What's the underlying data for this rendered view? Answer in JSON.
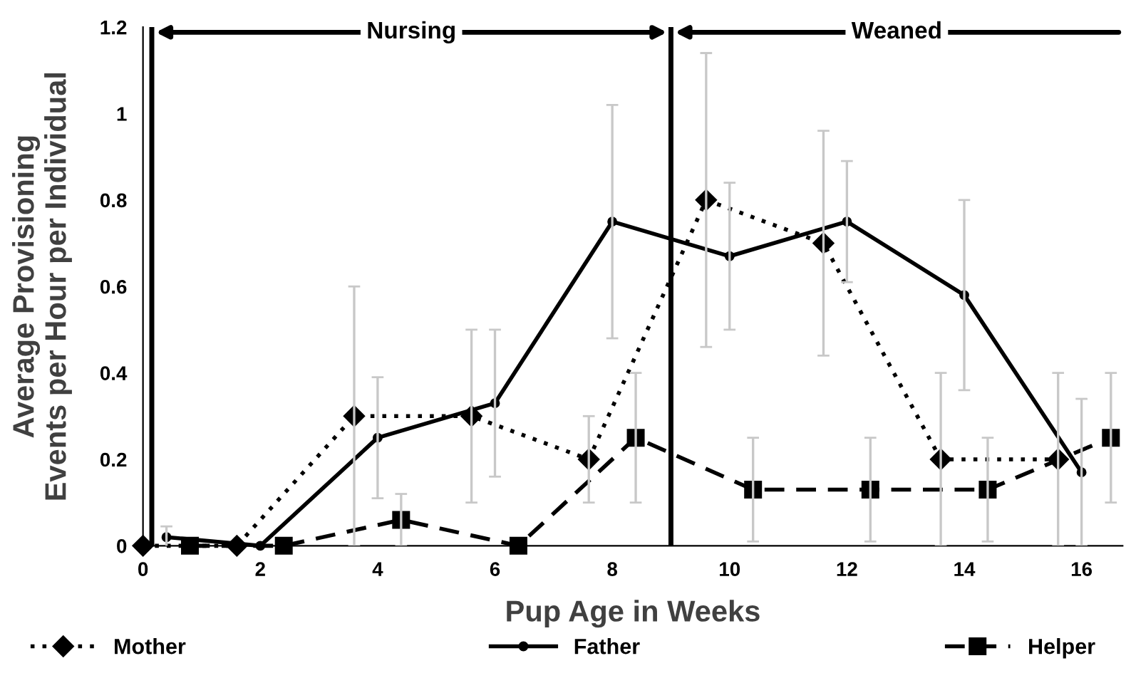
{
  "chart_data": {
    "type": "line",
    "xlabel": "Pup Age in Weeks",
    "ylabel": "Average Provisioning\nEvents per Hour per Individual",
    "xlim": [
      0,
      16.7
    ],
    "xticks": [
      0,
      2,
      4,
      6,
      8,
      10,
      12,
      14,
      16
    ],
    "ylim": [
      0,
      1.2
    ],
    "yticks": [
      0,
      0.2,
      0.4,
      0.6,
      0.8,
      1,
      1.2
    ],
    "grid": false,
    "legend": "bottom",
    "series": [
      {
        "name": "Mother",
        "color": "#000000",
        "marker": "diamond",
        "line_style": "dotted",
        "x": [
          0,
          1.6,
          3.6,
          5.6,
          7.6,
          9.6,
          11.6,
          13.6,
          15.6
        ],
        "values": [
          0,
          0,
          0.3,
          0.3,
          0.2,
          0.8,
          0.7,
          0.2,
          0.2
        ],
        "errors": [
          null,
          null,
          0.3,
          0.2,
          0.1,
          0.34,
          0.26,
          0.2,
          0.2
        ]
      },
      {
        "name": "Father",
        "color": "#000000",
        "marker": "circle",
        "line_style": "solid",
        "x": [
          0.4,
          2,
          4,
          6,
          8,
          10,
          12,
          14,
          16
        ],
        "values": [
          0.02,
          0,
          0.25,
          0.33,
          0.75,
          0.67,
          0.75,
          0.58,
          0.17
        ],
        "errors": [
          0.025,
          null,
          0.14,
          0.17,
          0.27,
          0.17,
          0.14,
          0.22,
          0.17
        ]
      },
      {
        "name": "Helper",
        "color": "#000000",
        "marker": "square",
        "line_style": "dashed",
        "x": [
          0.8,
          2.4,
          4.4,
          6.4,
          8.4,
          10.4,
          12.4,
          14.4,
          16.5
        ],
        "values": [
          0,
          0,
          0.06,
          0,
          0.25,
          0.13,
          0.13,
          0.13,
          0.25
        ],
        "errors": [
          null,
          null,
          0.06,
          null,
          0.15,
          0.12,
          0.12,
          0.12,
          0.15
        ]
      }
    ],
    "ref_lines": [
      {
        "axis": "x",
        "value": 0.15,
        "color": "#000000"
      },
      {
        "axis": "x",
        "value": 9,
        "color": "#000000"
      }
    ],
    "annotations": [
      "Nursing",
      "Weaned"
    ]
  }
}
